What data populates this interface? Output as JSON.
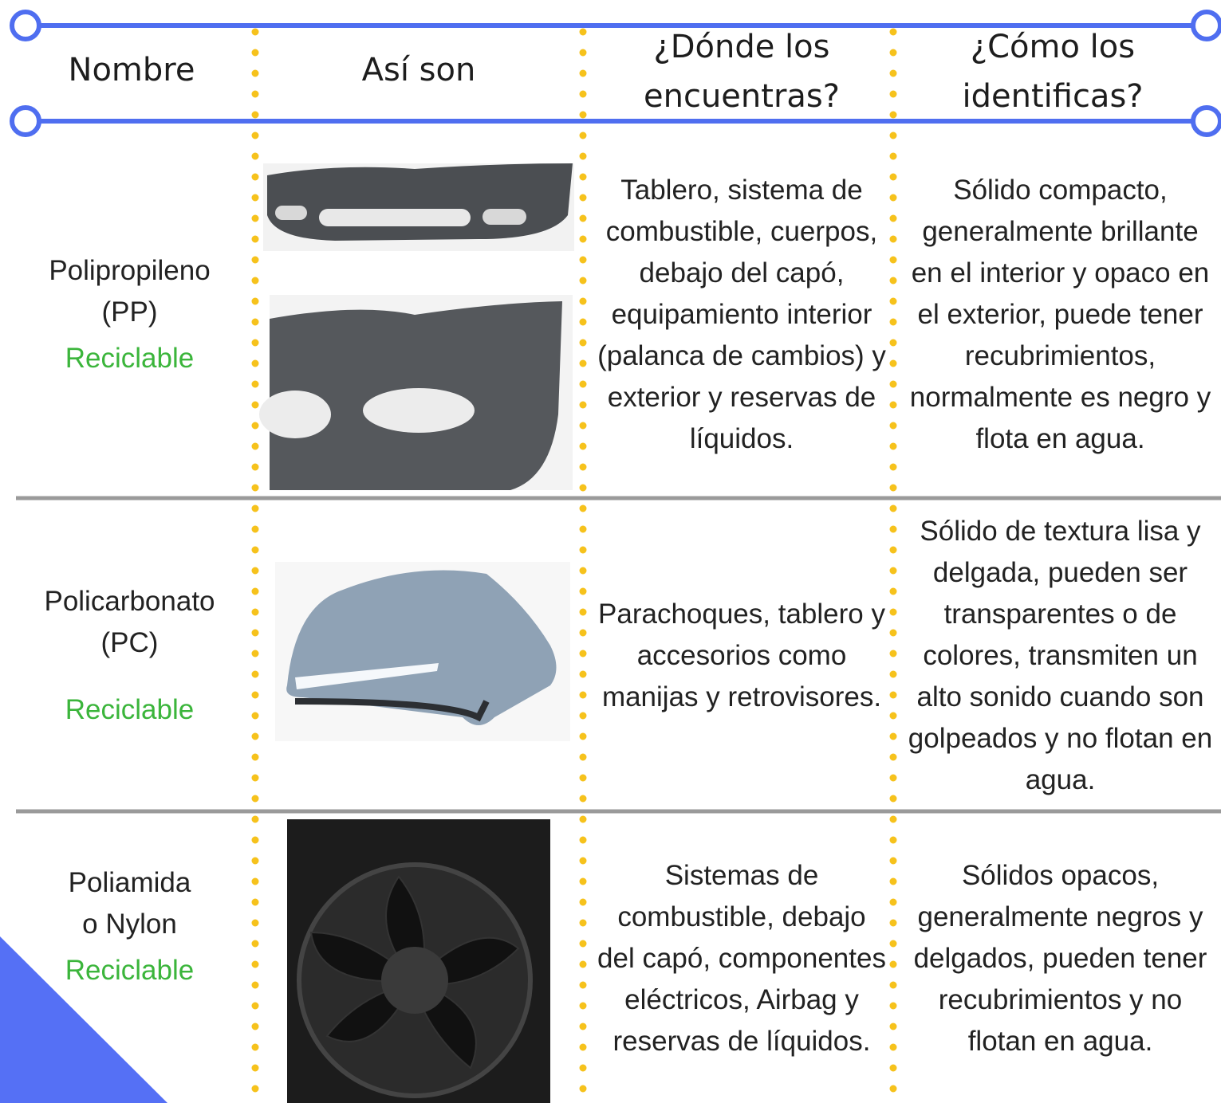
{
  "header": [
    "Nombre",
    "Así son",
    "¿Dónde los\nencuentras?",
    "¿Cómo los\nidentificas?"
  ],
  "rows": [
    {
      "name": "Polipropileno\n(PP)",
      "status": "Reciclable",
      "where": "Tablero, sistema de combustible, cuerpos, debajo del capó, equipamiento interior (palanca de cambios) y exterior y reservas de líquidos.",
      "identify": "Sólido compacto, generalmente brillante en el interior y opaco en el exterior, puede tener recubrimientos, normalmente es negro y flota en agua."
    },
    {
      "name": "Policarbonato\n(PC)",
      "status": "Reciclable",
      "where": "Parachoques, tablero y accesorios como manijas y retrovisores.",
      "identify": "Sólido de textura lisa y delgada, pueden ser transparentes o de colores, transmiten un alto sonido cuando son golpeados y no flotan en agua."
    },
    {
      "name": "Poliamida\no Nylon",
      "status": "Reciclable",
      "where": "Sistemas de combustible, debajo del capó, componentes eléctricos, Airbag y reservas de líquidos.",
      "identify": "Sólidos opacos, generalmente negros y delgados, pueden tener recubrimientos y no flotan en agua."
    }
  ]
}
